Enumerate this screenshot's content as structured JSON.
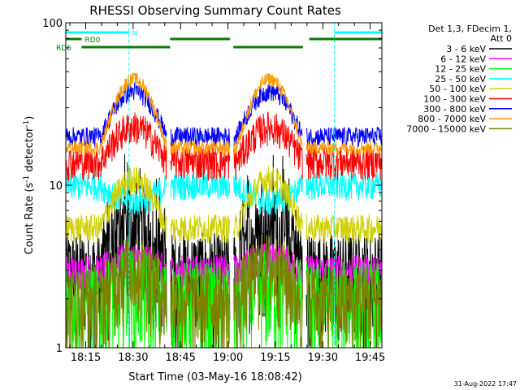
{
  "chart_data": {
    "type": "line",
    "title": "RHESSI Observing Summary Count Rates",
    "xlabel": "Start Time (03-May-16 18:08:42)",
    "ylabel_main": "Count Rate (s",
    "ylabel_sup": "-1",
    "ylabel_tail": " detector",
    "ylabel_close": ")",
    "ylog": true,
    "ylim": [
      1,
      100
    ],
    "xlim_minutes": [
      0,
      100
    ],
    "y_tick_labels": [
      {
        "value": 1,
        "label": "1"
      },
      {
        "value": 10,
        "label": "10"
      },
      {
        "value": 100,
        "label": "100"
      }
    ],
    "x_tick_labels": [
      {
        "minute": 6.3,
        "label": "18:15"
      },
      {
        "minute": 21.3,
        "label": "18:30"
      },
      {
        "minute": 36.3,
        "label": "18:45"
      },
      {
        "minute": 51.3,
        "label": "19:00"
      },
      {
        "minute": 66.3,
        "label": "19:15"
      },
      {
        "minute": 81.3,
        "label": "19:30"
      },
      {
        "minute": 96.3,
        "label": "19:45"
      }
    ],
    "legend_header": [
      "Det 1,3, FDecim 1,",
      "Att 0"
    ],
    "series": [
      {
        "name": "3 - 6 keV",
        "color": "#000000",
        "day": 5.0,
        "night": 3.0,
        "noise": 0.35,
        "spikes": true
      },
      {
        "name": "6 - 12 keV",
        "color": "#ff00ff",
        "day": 3.6,
        "night": 3.0,
        "noise": 0.12
      },
      {
        "name": "12 - 25 keV",
        "color": "#00ff00",
        "day": 2.4,
        "night": 2.0,
        "noise": 0.35
      },
      {
        "name": "25 - 50 keV",
        "color": "#00ffff",
        "day": 8.0,
        "night": 10.0,
        "noise": 0.1
      },
      {
        "name": "50 - 100 keV",
        "color": "#d0d000",
        "day": 11.0,
        "night": 5.5,
        "noise": 0.1
      },
      {
        "name": "100 - 300 keV",
        "color": "#ff0000",
        "day": 23.0,
        "night": 14.0,
        "noise": 0.12
      },
      {
        "name": "300 - 800 keV",
        "color": "#0000ff",
        "day": 38.0,
        "night": 20.0,
        "noise": 0.07
      },
      {
        "name": "800 - 7000 keV",
        "color": "#ff9900",
        "day": 45.0,
        "night": 17.0,
        "noise": 0.05
      },
      {
        "name": "7000 - 15000 keV",
        "color": "#808000",
        "day": 3.2,
        "night": 2.0,
        "noise": 0.3
      }
    ],
    "day_segments": [
      {
        "start": 11,
        "end": 32
      },
      {
        "start": 54,
        "end": 75
      }
    ],
    "gaps": [
      {
        "start": 32,
        "end": 33
      },
      {
        "start": 52,
        "end": 53
      },
      {
        "start": 75,
        "end": 76
      }
    ],
    "indicator_bars": [
      {
        "label": "N",
        "color": "#00ffff",
        "segments": [
          [
            0,
            20
          ],
          [
            85,
            100
          ]
        ]
      },
      {
        "label": "RD0",
        "color": "#008000",
        "segments": [
          [
            0,
            5
          ],
          [
            33,
            52
          ],
          [
            77,
            100
          ]
        ]
      },
      {
        "label": "RD6",
        "color": "#008000",
        "segments": [
          [
            5,
            33
          ],
          [
            53,
            75
          ]
        ]
      }
    ],
    "vertical_markers": [
      {
        "minute": 20,
        "color": "#00ffff"
      },
      {
        "minute": 85,
        "color": "#00ffff"
      },
      {
        "minute": 100,
        "color": "#00ffff"
      }
    ],
    "timestamp": "31-Aug-2022 17:47"
  }
}
